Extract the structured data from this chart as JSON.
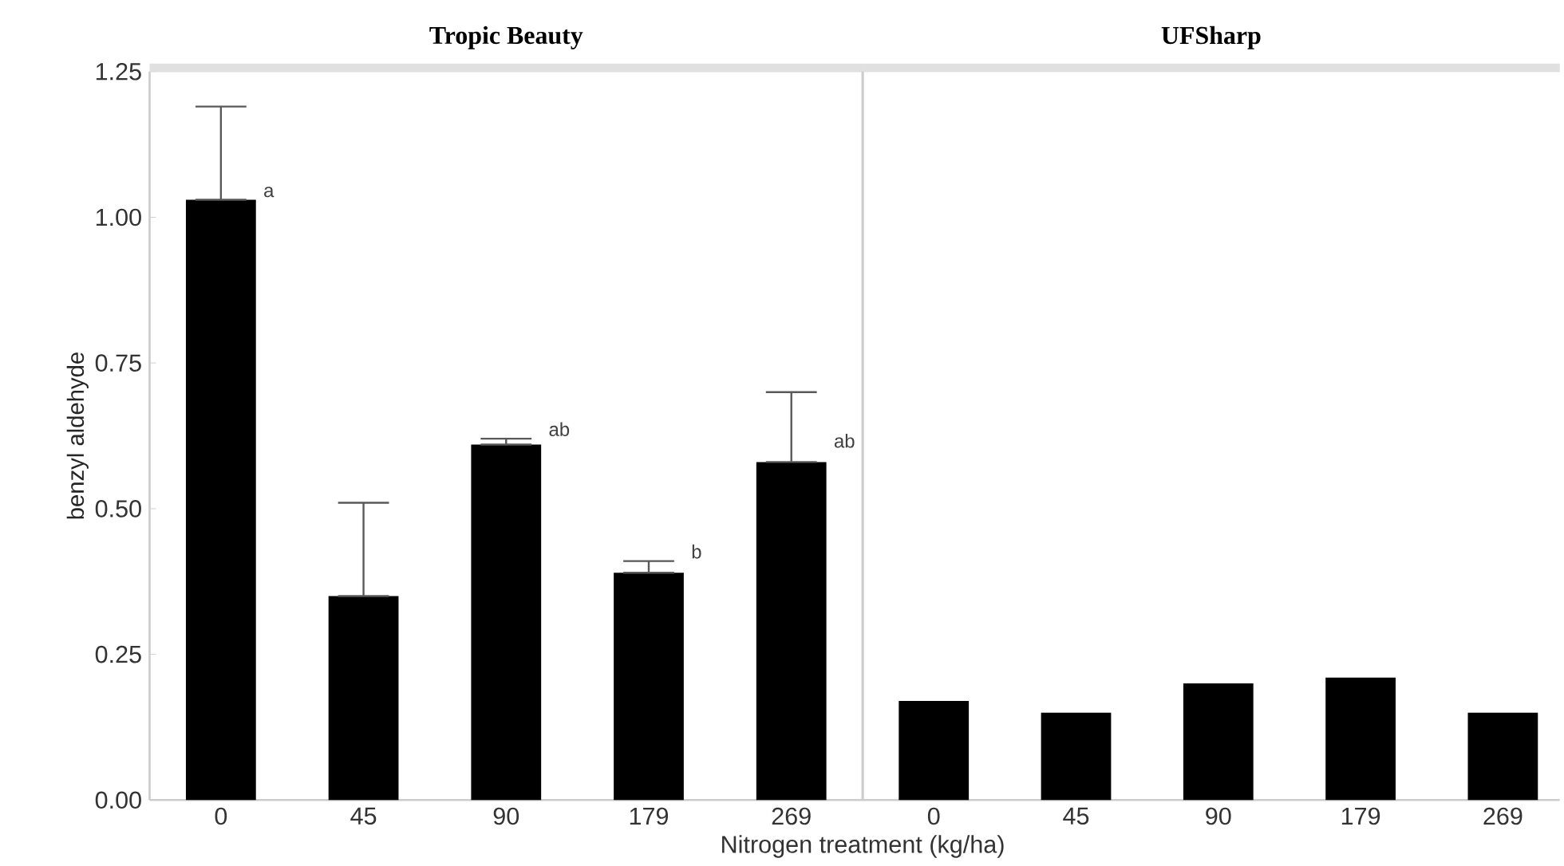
{
  "chart_data": [
    {
      "type": "bar",
      "title": "Tropic Beauty",
      "xlabel": "Nitrogen treatment (kg/ha)",
      "ylabel": "benzyl aldehyde",
      "categories": [
        "0",
        "45",
        "90",
        "179",
        "269"
      ],
      "values": [
        1.03,
        0.35,
        0.61,
        0.39,
        0.58
      ],
      "errors": [
        [
          1.03,
          1.19
        ],
        [
          0.35,
          0.51
        ],
        [
          0.61,
          0.62
        ],
        [
          0.39,
          0.41
        ],
        [
          0.58,
          0.7
        ]
      ],
      "color": "#000000",
      "ylim": [
        0,
        1.25
      ],
      "yticks": [
        {
          "value": 0,
          "label": "0.00"
        },
        {
          "value": 0.25,
          "label": "0.25"
        },
        {
          "value": 0.5,
          "label": "0.50"
        },
        {
          "value": 0.75,
          "label": "0.75"
        },
        {
          "value": 1,
          "label": "1.00"
        },
        {
          "value": 1.25,
          "label": "1.25"
        }
      ],
      "annotations": [
        {
          "text": "a",
          "x": "0",
          "y": 1.03
        },
        {
          "text": "ab",
          "x": "90",
          "y": 0.62
        },
        {
          "text": "b",
          "x": "179",
          "y": 0.41
        },
        {
          "text": "ab",
          "x": "269",
          "y": 0.6
        }
      ]
    },
    {
      "type": "bar",
      "title": "UFSharp",
      "categories": [
        "0",
        "45",
        "90",
        "179",
        "269"
      ],
      "values": [
        0.17,
        0.15,
        0.2,
        0.21,
        0.15
      ],
      "color": "#000000",
      "ylim": [
        0,
        1.25
      ],
      "tick_labels": "x"
    }
  ]
}
